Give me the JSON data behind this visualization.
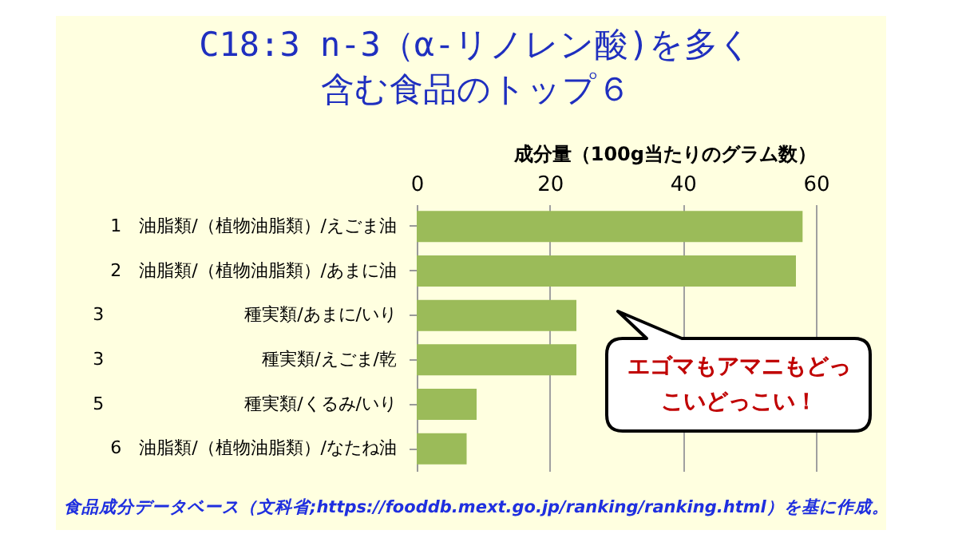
{
  "chart_data": {
    "type": "bar",
    "orientation": "horizontal",
    "title": "C18:3 n-3（α-リノレン酸)を多く含む食品のトップ６",
    "xlabel": "成分量（100g当たりのグラム数）",
    "categories": [
      "1　油脂類/（植物油脂類）/えごま油",
      "2　油脂類/（植物油脂類）/あまに油",
      "3　　　　　　　　種実類/あまに/いり",
      "3　　　　　　　　　種実類/えごま/乾",
      "5　　　　　　　　種実類/くるみ/いり",
      "6　油脂類/（植物油脂類）/なたね油"
    ],
    "values": [
      58,
      57,
      24,
      24,
      9,
      7.5
    ],
    "color": "#9bbb59",
    "xlim": [
      0,
      60
    ],
    "xticks": [
      0,
      20,
      40,
      60
    ],
    "grid": "x",
    "annotations": [
      "エゴマもアマニもどっこいどっこい！",
      "食品成分データベース（文科省;https://fooddb.mext.go.jp/ranking/ranking.html）を基に作成。"
    ]
  }
}
